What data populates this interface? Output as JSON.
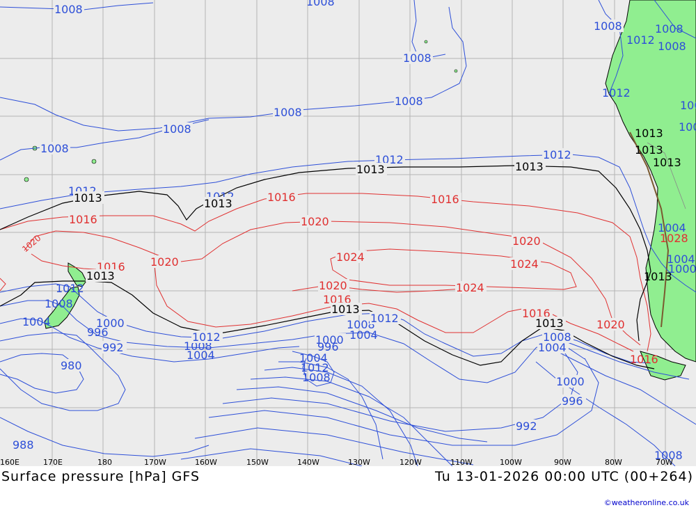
{
  "chart": {
    "title": "Surface pressure [hPa] GFS",
    "datetime": "Tu 13-01-2026 00:00 UTC (00+264)",
    "copyright": "©weatheronline.co.uk",
    "lon_ticks": [
      "160E",
      "170E",
      "180",
      "170W",
      "160W",
      "150W",
      "140W",
      "130W",
      "120W",
      "110W",
      "100W",
      "90W",
      "80W",
      "70W"
    ]
  },
  "colors": {
    "low": "#2d4fd8",
    "high": "#e03030",
    "ref": "#000000",
    "land": "#90ee90",
    "sea": "#ececec"
  },
  "isobar_labels": {
    "blue": [
      "1008",
      "1008",
      "1008",
      "1008",
      "1008",
      "1012",
      "1008",
      "1008",
      "1008",
      "1008",
      "1012",
      "1012",
      "1012",
      "1012",
      "1008",
      "1004",
      "1000",
      "996",
      "992",
      "980",
      "988",
      "1008",
      "1004",
      "1012",
      "1008",
      "1004",
      "1000",
      "996",
      "1012",
      "1008",
      "1004",
      "1000",
      "996",
      "992",
      "1004",
      "1008",
      "1012",
      "1004",
      "1000",
      "1008",
      "1012",
      "1008",
      "1004",
      "1012",
      "1008",
      "1000"
    ],
    "red": [
      "1016",
      "1016",
      "1016",
      "1020",
      "1016",
      "1020",
      "1024",
      "1020",
      "1016",
      "1020",
      "1024",
      "1024",
      "1020",
      "1016",
      "1020",
      "1016",
      "1028"
    ],
    "black": [
      "1013",
      "1013",
      "1013",
      "1013",
      "1013",
      "1013",
      "1013",
      "1013",
      "1013",
      "1013",
      "1013"
    ]
  }
}
